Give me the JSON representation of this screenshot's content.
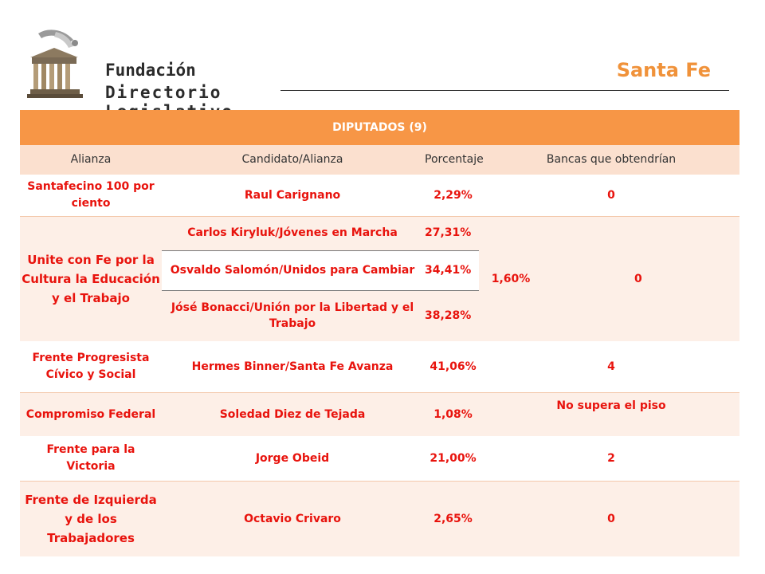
{
  "header": {
    "org_line1": "Fundación",
    "org_line2": "Directorio Legislativo",
    "region": "Santa Fe"
  },
  "table": {
    "title": "DIPUTADOS (9)",
    "columns": [
      "Alianza",
      "Candidato/Alianza",
      "Porcentaje",
      "Bancas que obtendrían"
    ],
    "rows": [
      {
        "alianza": "Santafecino 100 por ciento",
        "candidato": "Raul Carignano",
        "porcentaje": "2,29%",
        "bancas": "0"
      },
      {
        "alianza": "Unite con Fe por la Cultura la Educación y el Trabajo",
        "sub": [
          {
            "candidato": "Carlos Kiryluk/Jóvenes en Marcha",
            "porcentaje": "27,31%"
          },
          {
            "candidato": "Osvaldo Salomón/Unidos para Cambiar",
            "porcentaje": "34,41%"
          },
          {
            "candidato": "Jósé Bonacci/Unión por la Libertad y el Trabajo",
            "porcentaje": "38,28%"
          }
        ],
        "porcentaje_total": "1,60%",
        "bancas": "0"
      },
      {
        "alianza": "Frente Progresista Cívico y Social",
        "candidato": "Hermes Binner/Santa Fe Avanza",
        "porcentaje": "41,06%",
        "bancas": "4"
      },
      {
        "alianza": "Compromiso Federal",
        "candidato": "Soledad Diez de Tejada",
        "porcentaje": "1,08%",
        "bancas": "No supera el piso"
      },
      {
        "alianza": "Frente para la Victoria",
        "candidato": "Jorge Obeid",
        "porcentaje": "21,00%",
        "bancas": "2"
      },
      {
        "alianza": "Frente de Izquierda y de los Trabajadores",
        "candidato": "Octavio Crivaro",
        "porcentaje": "2,65%",
        "bancas": "0"
      }
    ]
  }
}
